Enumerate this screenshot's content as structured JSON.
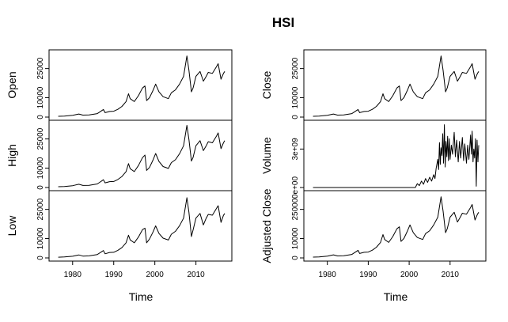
{
  "chart_data": {
    "type": "line",
    "title": "HSI",
    "xlabel": "Time",
    "x_range": [
      1976,
      2017
    ],
    "x_ticks": [
      "1980",
      "1990",
      "2000",
      "2010"
    ],
    "panels": [
      {
        "name": "Open",
        "column": "left",
        "ylim": [
          0,
          33000
        ],
        "y_ticks": [
          "0",
          "10000",
          "25000"
        ],
        "x": [
          1976.5,
          1978,
          1980,
          1981.5,
          1982.5,
          1984,
          1986,
          1987.5,
          1987.9,
          1989,
          1990,
          1991,
          1992,
          1993,
          1993.6,
          1994,
          1995,
          1996,
          1997,
          1997.6,
          1998,
          1998.7,
          1999.5,
          2000.2,
          2001,
          2002,
          2003.3,
          2004,
          2005,
          2006,
          2007,
          2007.8,
          2008.3,
          2008.9,
          2009.3,
          2010,
          2011,
          2011.8,
          2012.5,
          2013,
          2014,
          2015,
          2015.4,
          2016.1,
          2016.7,
          2017
        ],
        "values": [
          400,
          500,
          900,
          1600,
          1000,
          1100,
          1800,
          3900,
          2300,
          2900,
          3000,
          4000,
          5500,
          8000,
          12000,
          9500,
          8000,
          11000,
          15000,
          16000,
          8500,
          10000,
          13500,
          17000,
          13000,
          10500,
          9500,
          12500,
          14000,
          17000,
          21000,
          31500,
          24000,
          13000,
          15000,
          21000,
          23500,
          18500,
          21000,
          23000,
          22500,
          26000,
          27500,
          19500,
          22500,
          23500
        ]
      },
      {
        "name": "High",
        "column": "left",
        "ylim": [
          0,
          33000
        ],
        "y_ticks": [
          "0",
          "10000",
          "25000"
        ],
        "x": [
          1976.5,
          1978,
          1980,
          1981.5,
          1982.5,
          1984,
          1986,
          1987.5,
          1987.9,
          1989,
          1990,
          1991,
          1992,
          1993,
          1993.6,
          1994,
          1995,
          1996,
          1997,
          1997.6,
          1998,
          1998.7,
          1999.5,
          2000.2,
          2001,
          2002,
          2003.3,
          2004,
          2005,
          2006,
          2007,
          2007.8,
          2008.3,
          2008.9,
          2009.3,
          2010,
          2011,
          2011.8,
          2012.5,
          2013,
          2014,
          2015,
          2015.4,
          2016.1,
          2016.7,
          2017
        ],
        "values": [
          420,
          520,
          950,
          1650,
          1050,
          1150,
          1850,
          4000,
          2400,
          3000,
          3100,
          4100,
          5650,
          8200,
          12300,
          9700,
          8200,
          11300,
          15400,
          16700,
          8800,
          10300,
          13900,
          17500,
          13400,
          10800,
          9800,
          12800,
          14300,
          17400,
          21500,
          32000,
          24600,
          13600,
          15500,
          21500,
          24100,
          19000,
          21500,
          23600,
          23000,
          26500,
          28100,
          20000,
          23000,
          24100
        ]
      },
      {
        "name": "Low",
        "column": "left",
        "ylim": [
          0,
          33000
        ],
        "y_ticks": [
          "0",
          "10000",
          "25000"
        ],
        "x": [
          1976.5,
          1978,
          1980,
          1981.5,
          1982.5,
          1984,
          1986,
          1987.5,
          1987.9,
          1989,
          1990,
          1991,
          1992,
          1993,
          1993.6,
          1994,
          1995,
          1996,
          1997,
          1997.6,
          1998,
          1998.7,
          1999.5,
          2000.2,
          2001,
          2002,
          2003.3,
          2004,
          2005,
          2006,
          2007,
          2007.8,
          2008.3,
          2008.9,
          2009.3,
          2010,
          2011,
          2011.8,
          2012.5,
          2013,
          2014,
          2015,
          2015.4,
          2016.1,
          2016.7,
          2017
        ],
        "values": [
          380,
          480,
          850,
          1550,
          950,
          1050,
          1750,
          3800,
          2100,
          2800,
          2900,
          3900,
          5350,
          7800,
          11700,
          9300,
          7800,
          10700,
          14600,
          15300,
          7800,
          9700,
          13100,
          16500,
          12600,
          10200,
          9200,
          12200,
          13700,
          16600,
          20500,
          31000,
          23400,
          11000,
          14400,
          20500,
          22900,
          17000,
          20500,
          22400,
          22000,
          25500,
          26900,
          18300,
          21900,
          22900
        ]
      },
      {
        "name": "Close",
        "column": "right",
        "ylim": [
          0,
          33000
        ],
        "y_ticks": [
          "0",
          "10000",
          "25000"
        ],
        "x": [
          1976.5,
          1978,
          1980,
          1981.5,
          1982.5,
          1984,
          1986,
          1987.5,
          1987.9,
          1989,
          1990,
          1991,
          1992,
          1993,
          1993.6,
          1994,
          1995,
          1996,
          1997,
          1997.6,
          1998,
          1998.7,
          1999.5,
          2000.2,
          2001,
          2002,
          2003.3,
          2004,
          2005,
          2006,
          2007,
          2007.8,
          2008.3,
          2008.9,
          2009.3,
          2010,
          2011,
          2011.8,
          2012.5,
          2013,
          2014,
          2015,
          2015.4,
          2016.1,
          2016.7,
          2017
        ],
        "values": [
          400,
          500,
          900,
          1600,
          1000,
          1100,
          1800,
          3900,
          2300,
          2900,
          3000,
          4000,
          5500,
          8000,
          12000,
          9500,
          8000,
          11000,
          15000,
          16000,
          8500,
          10000,
          13500,
          17000,
          13000,
          10500,
          9500,
          12500,
          14000,
          17000,
          21000,
          31500,
          24000,
          13000,
          15000,
          21000,
          23500,
          18500,
          21000,
          23000,
          22500,
          26000,
          27500,
          19500,
          22500,
          23500
        ]
      },
      {
        "name": "Volume",
        "column": "right",
        "ylim": [
          0,
          5000000000
        ],
        "y_ticks": [
          "0e+00",
          "3e+09"
        ],
        "x": [
          1976.5,
          2001.5,
          2002,
          2002.5,
          2003,
          2003.5,
          2004,
          2004.5,
          2005,
          2005.5,
          2006,
          2006.3,
          2006.6,
          2007,
          2007.2,
          2007.4,
          2007.6,
          2007.8,
          2008,
          2008.2,
          2008.4,
          2008.6,
          2008.8,
          2009,
          2009.2,
          2009.4,
          2009.6,
          2009.8,
          2010,
          2010.3,
          2010.6,
          2011,
          2011.3,
          2011.6,
          2012,
          2012.3,
          2012.6,
          2013,
          2013.3,
          2013.6,
          2014,
          2014.3,
          2014.6,
          2015,
          2015.2,
          2015.4,
          2015.6,
          2015.8,
          2016,
          2016.2,
          2016.4,
          2016.6,
          2016.8,
          2017
        ],
        "values": [
          0,
          0,
          300000000,
          150000000,
          500000000,
          250000000,
          700000000,
          400000000,
          800000000,
          500000000,
          1000000000,
          700000000,
          1500000000,
          2200000000,
          1400000000,
          3500000000,
          1800000000,
          3100000000,
          2500000000,
          4200000000,
          1900000000,
          4900000000,
          1600000000,
          3600000000,
          2400000000,
          4000000000,
          2100000000,
          3800000000,
          2200000000,
          3300000000,
          2600000000,
          4300000000,
          2400000000,
          3700000000,
          2000000000,
          3600000000,
          2300000000,
          3900000000,
          2100000000,
          3400000000,
          1900000000,
          3300000000,
          2200000000,
          4100000000,
          2600000000,
          4400000000,
          2000000000,
          3000000000,
          2300000000,
          3800000000,
          100000000,
          3700000000,
          2000000000,
          3300000000
        ]
      },
      {
        "name": "Adjusted Close",
        "column": "right",
        "ylim": [
          0,
          33000
        ],
        "y_ticks": [
          "0",
          "10000",
          "25000"
        ],
        "x": [
          1976.5,
          1978,
          1980,
          1981.5,
          1982.5,
          1984,
          1986,
          1987.5,
          1987.9,
          1989,
          1990,
          1991,
          1992,
          1993,
          1993.6,
          1994,
          1995,
          1996,
          1997,
          1997.6,
          1998,
          1998.7,
          1999.5,
          2000.2,
          2001,
          2002,
          2003.3,
          2004,
          2005,
          2006,
          2007,
          2007.8,
          2008.3,
          2008.9,
          2009.3,
          2010,
          2011,
          2011.8,
          2012.5,
          2013,
          2014,
          2015,
          2015.4,
          2016.1,
          2016.7,
          2017
        ],
        "values": [
          400,
          500,
          900,
          1600,
          1000,
          1100,
          1800,
          3900,
          2300,
          2900,
          3000,
          4000,
          5500,
          8000,
          12000,
          9500,
          8000,
          11000,
          15000,
          16000,
          8500,
          10000,
          13500,
          17000,
          13000,
          10500,
          9500,
          12500,
          14000,
          17000,
          21000,
          31500,
          24000,
          13000,
          15000,
          21000,
          23500,
          18500,
          21000,
          23000,
          22500,
          26000,
          27500,
          19500,
          22500,
          23500
        ]
      }
    ]
  }
}
